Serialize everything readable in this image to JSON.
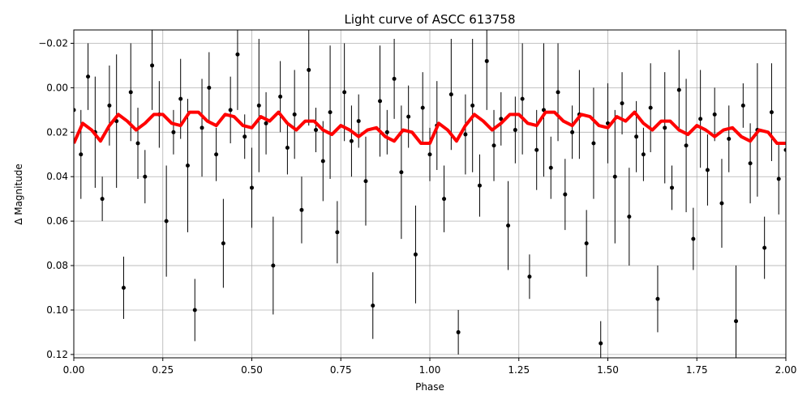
{
  "chart_data": {
    "type": "errorbar_scatter_line",
    "title": "Light curve of ASCC 613758",
    "x_label": "Phase",
    "y_label": "Δ Magnitude",
    "xlim": [
      0,
      2
    ],
    "ylim": [
      -0.026,
      0.1215
    ],
    "invert_y": true,
    "grid": true,
    "xticks": [
      {
        "value": 0,
        "label": "0.00"
      },
      {
        "value": 0.25,
        "label": "0.25"
      },
      {
        "value": 0.5,
        "label": "0.50"
      },
      {
        "value": 0.75,
        "label": "0.75"
      },
      {
        "value": 1,
        "label": "1.00"
      },
      {
        "value": 1.25,
        "label": "1.25"
      },
      {
        "value": 1.5,
        "label": "1.50"
      },
      {
        "value": 1.75,
        "label": "1.75"
      },
      {
        "value": 2,
        "label": "2.00"
      }
    ],
    "yticks": [
      {
        "value": -0.02,
        "label": "−0.02"
      },
      {
        "value": 0,
        "label": "0.00"
      },
      {
        "value": 0.02,
        "label": "0.02"
      },
      {
        "value": 0.04,
        "label": "0.04"
      },
      {
        "value": 0.06,
        "label": "0.06"
      },
      {
        "value": 0.08,
        "label": "0.08"
      },
      {
        "value": 0.1,
        "label": "0.10"
      },
      {
        "value": 0.12,
        "label": "0.12"
      }
    ],
    "series": [
      {
        "kind": "errorbar",
        "color": "#000000",
        "x": [
          0,
          0.02,
          0.04,
          0.06,
          0.08,
          0.1,
          0.12,
          0.14,
          0.16,
          0.18,
          0.2,
          0.22,
          0.24,
          0.26,
          0.28,
          0.3,
          0.32,
          0.34,
          0.36,
          0.38,
          0.4,
          0.42,
          0.44,
          0.46,
          0.48,
          0.5,
          0.52,
          0.54,
          0.56,
          0.58,
          0.6,
          0.62,
          0.64,
          0.66,
          0.68,
          0.7,
          0.72,
          0.74,
          0.76,
          0.78,
          0.8,
          0.82,
          0.84,
          0.86,
          0.88,
          0.9,
          0.92,
          0.94,
          0.96,
          0.98,
          1,
          1.02,
          1.04,
          1.06,
          1.08,
          1.1,
          1.12,
          1.14,
          1.16,
          1.18,
          1.2,
          1.22,
          1.24,
          1.26,
          1.28,
          1.3,
          1.32,
          1.34,
          1.36,
          1.38,
          1.4,
          1.42,
          1.44,
          1.46,
          1.48,
          1.5,
          1.52,
          1.54,
          1.56,
          1.58,
          1.6,
          1.62,
          1.64,
          1.66,
          1.68,
          1.7,
          1.72,
          1.74,
          1.76,
          1.78,
          1.8,
          1.82,
          1.84,
          1.86,
          1.88,
          1.9,
          1.92,
          1.94,
          1.96,
          1.98,
          2
        ],
        "values": [
          0.01,
          0.03,
          -0.005,
          0.02,
          0.05,
          0.008,
          0.015,
          0.09,
          0.002,
          0.025,
          0.04,
          -0.01,
          0.012,
          0.06,
          0.02,
          0.005,
          0.035,
          0.1,
          0.018,
          0,
          0.03,
          0.07,
          0.01,
          -0.015,
          0.022,
          0.045,
          0.008,
          0.016,
          0.08,
          0.004,
          0.027,
          0.012,
          0.055,
          -0.008,
          0.019,
          0.033,
          0.011,
          0.065,
          0.002,
          0.024,
          0.015,
          0.042,
          0.098,
          0.006,
          0.02,
          -0.004,
          0.038,
          0.013,
          0.075,
          0.009,
          0.03,
          0.017,
          0.05,
          0.003,
          0.11,
          0.021,
          0.008,
          0.044,
          -0.012,
          0.026,
          0.014,
          0.062,
          0.019,
          0.005,
          0.085,
          0.028,
          0.01,
          0.036,
          0.002,
          0.048,
          0.02,
          0.012,
          0.07,
          0.025,
          0.115,
          0.016,
          0.04,
          0.007,
          0.058,
          0.022,
          0.03,
          0.009,
          0.095,
          0.018,
          0.045,
          0.001,
          0.026,
          0.068,
          0.014,
          0.037,
          0.012,
          0.052,
          0.023,
          0.105,
          0.008,
          0.034,
          0.019,
          0.072,
          0.011,
          0.041,
          0.028
        ],
        "errors": [
          0.012,
          0.02,
          0.015,
          0.025,
          0.01,
          0.018,
          0.03,
          0.014,
          0.022,
          0.016,
          0.012,
          0.02,
          0.015,
          0.025,
          0.01,
          0.018,
          0.03,
          0.014,
          0.022,
          0.016,
          0.012,
          0.02,
          0.015,
          0.025,
          0.01,
          0.018,
          0.03,
          0.014,
          0.022,
          0.016,
          0.012,
          0.02,
          0.015,
          0.025,
          0.01,
          0.018,
          0.03,
          0.014,
          0.022,
          0.016,
          0.012,
          0.02,
          0.015,
          0.025,
          0.01,
          0.018,
          0.03,
          0.014,
          0.022,
          0.016,
          0.012,
          0.02,
          0.015,
          0.025,
          0.01,
          0.018,
          0.03,
          0.014,
          0.022,
          0.016,
          0.012,
          0.02,
          0.015,
          0.025,
          0.01,
          0.018,
          0.03,
          0.014,
          0.022,
          0.016,
          0.012,
          0.02,
          0.015,
          0.025,
          0.01,
          0.018,
          0.03,
          0.014,
          0.022,
          0.016,
          0.012,
          0.02,
          0.015,
          0.025,
          0.01,
          0.018,
          0.03,
          0.014,
          0.022,
          0.016,
          0.012,
          0.02,
          0.015,
          0.025,
          0.01,
          0.018,
          0.03,
          0.014,
          0.022,
          0.016,
          0.02
        ]
      },
      {
        "kind": "line",
        "color": "#ff0000",
        "x": [
          0,
          0.025,
          0.05,
          0.075,
          0.1,
          0.125,
          0.15,
          0.175,
          0.2,
          0.225,
          0.25,
          0.275,
          0.3,
          0.325,
          0.35,
          0.375,
          0.4,
          0.425,
          0.45,
          0.475,
          0.5,
          0.525,
          0.55,
          0.575,
          0.6,
          0.625,
          0.65,
          0.675,
          0.7,
          0.725,
          0.75,
          0.775,
          0.8,
          0.825,
          0.85,
          0.875,
          0.9,
          0.925,
          0.95,
          0.975,
          1,
          1.025,
          1.05,
          1.075,
          1.1,
          1.125,
          1.15,
          1.175,
          1.2,
          1.225,
          1.25,
          1.275,
          1.3,
          1.325,
          1.35,
          1.375,
          1.4,
          1.425,
          1.45,
          1.475,
          1.5,
          1.525,
          1.55,
          1.575,
          1.6,
          1.625,
          1.65,
          1.675,
          1.7,
          1.725,
          1.75,
          1.775,
          1.8,
          1.825,
          1.85,
          1.875,
          1.9,
          1.925,
          1.95,
          1.975,
          2
        ],
        "values": [
          0.025,
          0.016,
          0.019,
          0.024,
          0.017,
          0.012,
          0.015,
          0.019,
          0.016,
          0.012,
          0.012,
          0.016,
          0.017,
          0.011,
          0.011,
          0.015,
          0.017,
          0.012,
          0.013,
          0.017,
          0.018,
          0.013,
          0.015,
          0.011,
          0.016,
          0.019,
          0.015,
          0.015,
          0.019,
          0.021,
          0.017,
          0.019,
          0.022,
          0.019,
          0.018,
          0.022,
          0.024,
          0.019,
          0.02,
          0.025,
          0.025,
          0.016,
          0.019,
          0.024,
          0.017,
          0.012,
          0.015,
          0.019,
          0.016,
          0.012,
          0.012,
          0.016,
          0.017,
          0.011,
          0.011,
          0.015,
          0.017,
          0.012,
          0.013,
          0.017,
          0.018,
          0.013,
          0.015,
          0.011,
          0.016,
          0.019,
          0.015,
          0.015,
          0.019,
          0.021,
          0.017,
          0.019,
          0.022,
          0.019,
          0.018,
          0.022,
          0.024,
          0.019,
          0.02,
          0.025,
          0.025
        ]
      }
    ]
  }
}
